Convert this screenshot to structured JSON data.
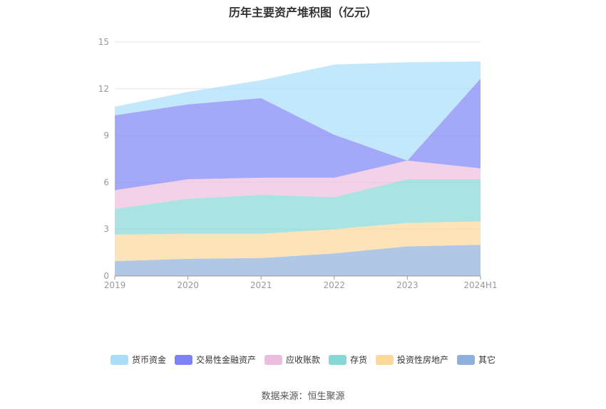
{
  "chart_data": {
    "type": "area",
    "stacked": true,
    "title": "历年主要资产堆积图（亿元）",
    "xlabel": "",
    "ylabel": "",
    "categories": [
      "2019",
      "2020",
      "2021",
      "2022",
      "2023",
      "2024H1"
    ],
    "ylim": [
      0,
      15
    ],
    "yticks": [
      0,
      3,
      6,
      9,
      12,
      15
    ],
    "grid": true,
    "legend_position": "bottom",
    "series": [
      {
        "name": "其它",
        "color": "#8fb0dc",
        "values": [
          0.95,
          1.1,
          1.15,
          1.45,
          1.9,
          2.0
        ]
      },
      {
        "name": "投资性房地产",
        "color": "#fcd99a",
        "values": [
          1.7,
          1.6,
          1.55,
          1.55,
          1.5,
          1.5
        ]
      },
      {
        "name": "存货",
        "color": "#85d8d6",
        "values": [
          1.65,
          2.25,
          2.5,
          2.05,
          2.8,
          2.7
        ]
      },
      {
        "name": "应收账款",
        "color": "#ecbde0",
        "values": [
          1.2,
          1.25,
          1.1,
          1.25,
          1.2,
          0.7
        ]
      },
      {
        "name": "交易性金融资产",
        "color": "#7d83f5",
        "values": [
          4.8,
          4.8,
          5.1,
          2.75,
          0.0,
          5.75
        ]
      },
      {
        "name": "货币资金",
        "color": "#a9def9",
        "values": [
          0.55,
          0.8,
          1.15,
          4.5,
          6.3,
          1.1
        ]
      }
    ]
  },
  "source_label": "数据来源：恒生聚源"
}
